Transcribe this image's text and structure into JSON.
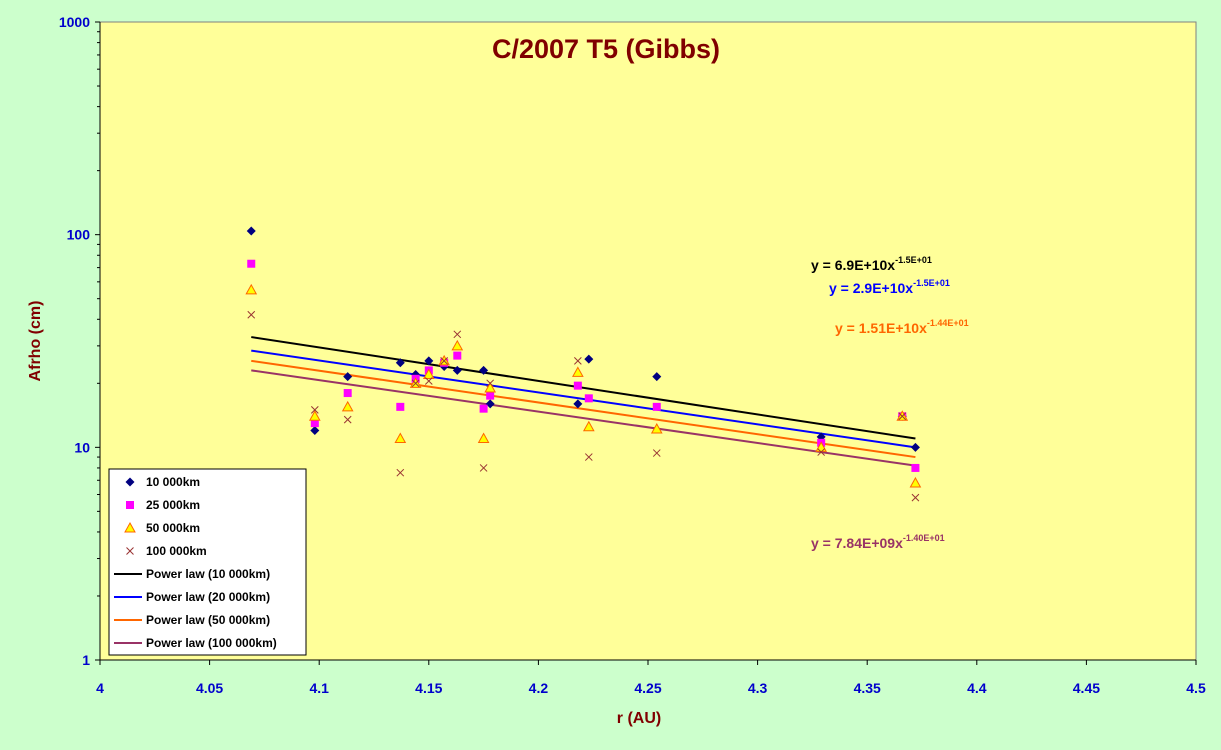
{
  "chart_data": {
    "type": "scatter",
    "title": "C/2007 T5 (Gibbs)",
    "xlabel": "r (AU)",
    "ylabel": "Afrho (cm)",
    "xlim": [
      4,
      4.5
    ],
    "ylim": [
      1,
      1000
    ],
    "yscale": "log",
    "x_ticks": [
      "4",
      "4.05",
      "4.1",
      "4.15",
      "4.2",
      "4.25",
      "4.3",
      "4.35",
      "4.4",
      "4.45",
      "4.5"
    ],
    "y_ticks": [
      "1",
      "10",
      "100",
      "1000"
    ],
    "grid": false,
    "legend_position": "bottom-left",
    "series": [
      {
        "name": "10 000km",
        "marker": "diamond",
        "color": "#000080",
        "points": [
          [
            4.069,
            104
          ],
          [
            4.098,
            12
          ],
          [
            4.113,
            21.5
          ],
          [
            4.137,
            25
          ],
          [
            4.144,
            22
          ],
          [
            4.15,
            25.5
          ],
          [
            4.157,
            24
          ],
          [
            4.163,
            23
          ],
          [
            4.175,
            23
          ],
          [
            4.178,
            16
          ],
          [
            4.218,
            16
          ],
          [
            4.223,
            26
          ],
          [
            4.254,
            21.5
          ],
          [
            4.329,
            11.2
          ],
          [
            4.366,
            14
          ],
          [
            4.372,
            10
          ]
        ]
      },
      {
        "name": "25 000km",
        "marker": "square",
        "color": "#ff00ff",
        "points": [
          [
            4.069,
            73
          ],
          [
            4.098,
            13
          ],
          [
            4.113,
            18
          ],
          [
            4.137,
            15.5
          ],
          [
            4.144,
            21
          ],
          [
            4.15,
            23
          ],
          [
            4.157,
            25
          ],
          [
            4.163,
            27
          ],
          [
            4.175,
            15.2
          ],
          [
            4.178,
            17.5
          ],
          [
            4.218,
            19.5
          ],
          [
            4.223,
            17
          ],
          [
            4.254,
            15.5
          ],
          [
            4.329,
            10.5
          ],
          [
            4.366,
            14
          ],
          [
            4.372,
            8
          ]
        ]
      },
      {
        "name": "50 000km",
        "marker": "triangle",
        "color": "#ffff00",
        "stroke": "#ff6600",
        "points": [
          [
            4.069,
            55
          ],
          [
            4.098,
            14
          ],
          [
            4.113,
            15.5
          ],
          [
            4.137,
            11
          ],
          [
            4.144,
            20
          ],
          [
            4.15,
            22
          ],
          [
            4.157,
            25.5
          ],
          [
            4.163,
            30
          ],
          [
            4.175,
            11
          ],
          [
            4.178,
            19
          ],
          [
            4.218,
            22.5
          ],
          [
            4.223,
            12.5
          ],
          [
            4.254,
            12.2
          ],
          [
            4.329,
            10
          ],
          [
            4.366,
            14
          ],
          [
            4.372,
            6.8
          ]
        ]
      },
      {
        "name": "100 000km",
        "marker": "x",
        "color": "#993333",
        "points": [
          [
            4.069,
            42
          ],
          [
            4.098,
            15
          ],
          [
            4.113,
            13.5
          ],
          [
            4.137,
            7.6
          ],
          [
            4.144,
            20
          ],
          [
            4.15,
            20.5
          ],
          [
            4.157,
            25.5
          ],
          [
            4.163,
            34
          ],
          [
            4.175,
            8
          ],
          [
            4.178,
            20
          ],
          [
            4.218,
            25.5
          ],
          [
            4.223,
            9
          ],
          [
            4.254,
            9.4
          ],
          [
            4.329,
            9.5
          ],
          [
            4.366,
            14
          ],
          [
            4.372,
            5.8
          ]
        ]
      }
    ],
    "trendlines": [
      {
        "name": "Power law (10 000km)",
        "color": "#000000",
        "x": [
          4.069,
          4.372
        ],
        "y": [
          33,
          11
        ]
      },
      {
        "name": "Power law (20 000km)",
        "color": "#0000ff",
        "x": [
          4.069,
          4.372
        ],
        "y": [
          28.5,
          10
        ]
      },
      {
        "name": "Power law (50 000km)",
        "color": "#ff6600",
        "x": [
          4.069,
          4.372
        ],
        "y": [
          25.5,
          9
        ]
      },
      {
        "name": "Power law (100 000km)",
        "color": "#993366",
        "x": [
          4.069,
          4.372
        ],
        "y": [
          23,
          8.2
        ]
      }
    ],
    "equations": [
      {
        "base": "y = 6.9E+10x",
        "exp": "-1.5E+01",
        "color": "#000000"
      },
      {
        "base": "y = 2.9E+10x",
        "exp": "-1.5E+01",
        "color": "#0000ff"
      },
      {
        "base": "y = 1.51E+10x",
        "exp": "-1.44E+01",
        "color": "#ff6600"
      },
      {
        "base": "y = 7.84E+09x",
        "exp": "-1.40E+01",
        "color": "#993366"
      }
    ]
  },
  "colors": {
    "page_background": "#ccffcc",
    "plot_background": "#ffff99",
    "tick_labels": "#0000cc",
    "titles": "#800000"
  }
}
